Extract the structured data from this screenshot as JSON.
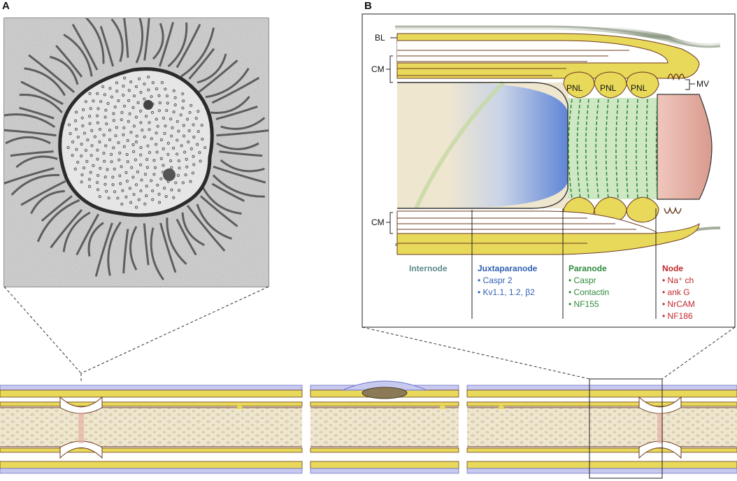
{
  "panels": {
    "a": {
      "letter": "A"
    },
    "b": {
      "letter": "B"
    }
  },
  "panel_b_labels": {
    "bl": "BL",
    "cm_top": "CM",
    "cm_bottom": "CM",
    "mv": "MV",
    "pnl": [
      "PNL",
      "PNL",
      "PNL"
    ]
  },
  "regions": [
    {
      "title": "Internode",
      "items": [],
      "color": "#5b8a8a"
    },
    {
      "title": "Juxtaparanode",
      "items": [
        "• Caspr 2",
        "• Kv1.1, 1.2, β2"
      ],
      "color": "#2f5fb3"
    },
    {
      "title": "Paranode",
      "items": [
        "• Caspr",
        "• Contactin",
        "• NF155"
      ],
      "color": "#2e8b3a"
    },
    {
      "title": "Node",
      "items": [
        "• Na⁺ ch",
        "• ank G",
        "• NrCAM",
        "• NF186"
      ],
      "color": "#c0282b"
    }
  ],
  "colors": {
    "myelin_yellow": "#e8d95a",
    "axon_beige": "#efe6cf",
    "membrane_brown": "#6b3a1e",
    "juxtaparanode_blue": "#6d8fd6",
    "paranode_green": "#cfe8c4",
    "node_pink": "#e6b1a6",
    "basal_lamina_gray": "#8f9a86",
    "nerve_lavender": "#c7c9ef"
  }
}
